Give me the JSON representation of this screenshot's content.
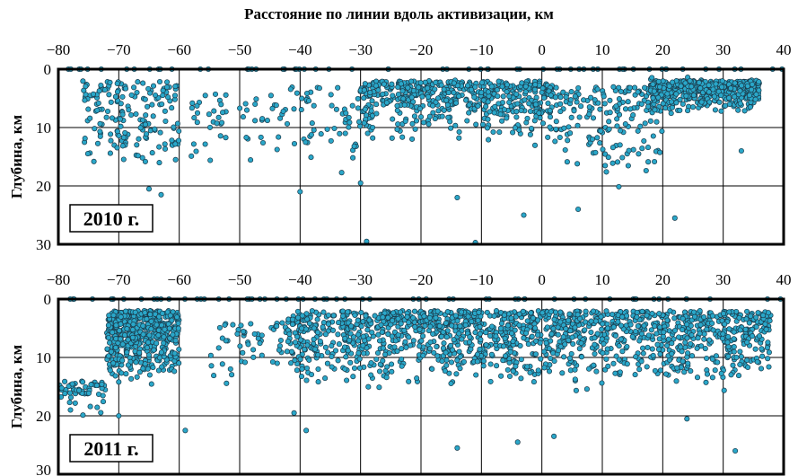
{
  "figure": {
    "title": "Расстояние по линии вдоль активизации, км"
  },
  "chart_data": [
    {
      "type": "scatter",
      "panel_label": "2010 г.",
      "title": "Расстояние по линии вдоль активизации, км",
      "xlabel": "",
      "ylabel": "Глубина, км",
      "xlim": [
        -80,
        40
      ],
      "ylim": [
        0,
        30
      ],
      "y_inverted": true,
      "x_ticks": [
        -80,
        -70,
        -60,
        -50,
        -40,
        -30,
        -20,
        -10,
        0,
        10,
        20,
        30,
        40
      ],
      "y_ticks": [
        0,
        10,
        20,
        30
      ],
      "grid": true,
      "point_color": "#2aa7c9",
      "point_edge_color": "#1b3a4a",
      "cluster_summary": [
        {
          "x_range": [
            -76,
            -60
          ],
          "depth_range": [
            0,
            21
          ],
          "density": "medium"
        },
        {
          "x_range": [
            -58,
            -42
          ],
          "depth_range": [
            2,
            20
          ],
          "density": "low"
        },
        {
          "x_range": [
            -42,
            -30
          ],
          "depth_range": [
            1,
            22
          ],
          "density": "low"
        },
        {
          "x_range": [
            -30,
            2
          ],
          "depth_range": [
            0,
            15
          ],
          "density": "high"
        },
        {
          "x_range": [
            2,
            20
          ],
          "depth_range": [
            1,
            23
          ],
          "density": "medium"
        },
        {
          "x_range": [
            18,
            36
          ],
          "depth_range": [
            0,
            9
          ],
          "density": "high"
        }
      ],
      "outliers": [
        {
          "x": -65,
          "y": 20.5
        },
        {
          "x": -63,
          "y": 21.5
        },
        {
          "x": -30,
          "y": 19.5
        },
        {
          "x": -29,
          "y": 29.5
        },
        {
          "x": -14,
          "y": 22
        },
        {
          "x": -11,
          "y": 29.7
        },
        {
          "x": -3,
          "y": 25
        },
        {
          "x": 6,
          "y": 24
        },
        {
          "x": 22,
          "y": 25.5
        },
        {
          "x": 33,
          "y": 14
        },
        {
          "x": -40,
          "y": 21
        }
      ]
    },
    {
      "type": "scatter",
      "panel_label": "2011 г.",
      "title": "",
      "xlabel": "",
      "ylabel": "Глубина, км",
      "xlim": [
        -80,
        40
      ],
      "ylim": [
        0,
        30
      ],
      "y_inverted": true,
      "x_ticks": [
        -80,
        -70,
        -60,
        -50,
        -40,
        -30,
        -20,
        -10,
        0,
        10,
        20,
        30,
        40
      ],
      "y_ticks": [
        0,
        10,
        20,
        30
      ],
      "grid": true,
      "point_color": "#2aa7c9",
      "point_edge_color": "#1b3a4a",
      "cluster_summary": [
        {
          "x_range": [
            -72,
            -60
          ],
          "depth_range": [
            0,
            17
          ],
          "density": "high"
        },
        {
          "x_range": [
            -80,
            -72
          ],
          "depth_range": [
            12,
            22
          ],
          "density": "low"
        },
        {
          "x_range": [
            -55,
            -42
          ],
          "depth_range": [
            2,
            18
          ],
          "density": "low"
        },
        {
          "x_range": [
            -42,
            38
          ],
          "depth_range": [
            0,
            18
          ],
          "density": "very high"
        }
      ],
      "outliers": [
        {
          "x": -78,
          "y": 19
        },
        {
          "x": -70,
          "y": 20
        },
        {
          "x": -59,
          "y": 22.5
        },
        {
          "x": -41,
          "y": 19.5
        },
        {
          "x": -39,
          "y": 22.5
        },
        {
          "x": -14,
          "y": 25.5
        },
        {
          "x": -4,
          "y": 24.5
        },
        {
          "x": 2,
          "y": 23.5
        },
        {
          "x": 24,
          "y": 20.5
        },
        {
          "x": 32,
          "y": 26
        }
      ]
    }
  ]
}
